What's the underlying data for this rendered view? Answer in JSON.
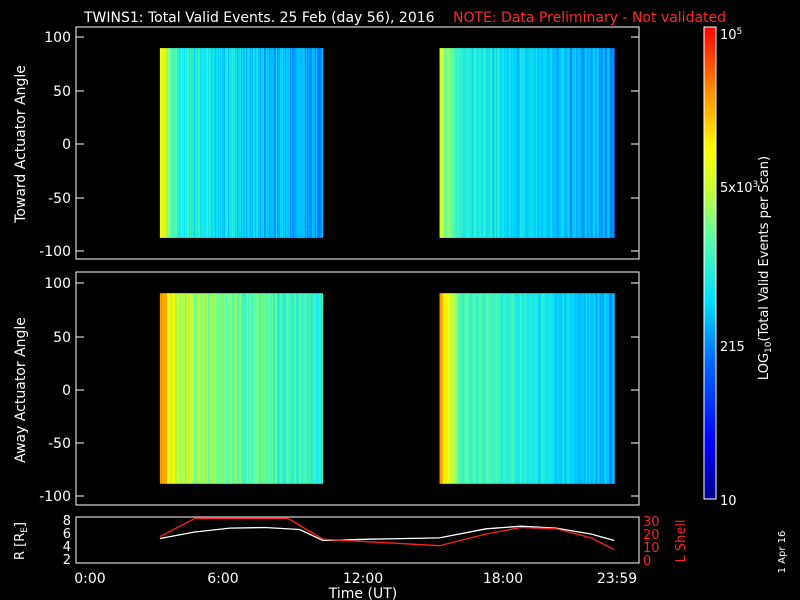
{
  "header": {
    "title": "TWINS1: Total Valid Events. 25 Feb (day  56), 2016",
    "note": "NOTE: Data Preliminary - Not validated",
    "note_color": "#ff2a2a"
  },
  "date_stamp": "1 Apr 16",
  "chart_data": [
    {
      "type": "heatmap",
      "ylabel": "Toward Actuator Angle",
      "yticks": [
        "100",
        "50",
        "0",
        "-50",
        "-100"
      ],
      "ylim": [
        -110,
        110
      ],
      "xlim_hours": [
        0,
        24
      ],
      "data_blocks": [
        {
          "t_start": "3:00",
          "t_end": "10:00",
          "angle_range": [
            -90,
            90
          ],
          "log_level_start": 0.72,
          "log_level_end": 0.33
        },
        {
          "t_start": "15:00",
          "t_end": "22:30",
          "angle_range": [
            -90,
            90
          ],
          "log_level_start": 0.66,
          "log_level_end": 0.35
        }
      ]
    },
    {
      "type": "heatmap",
      "ylabel": "Away Actuator Angle",
      "yticks": [
        "100",
        "50",
        "0",
        "-50",
        "-100"
      ],
      "ylim": [
        -110,
        110
      ],
      "xlim_hours": [
        0,
        24
      ],
      "data_blocks": [
        {
          "t_start": "3:00",
          "t_end": "10:00",
          "angle_range": [
            -90,
            90
          ],
          "log_level_start": 0.85,
          "log_level_end": 0.48
        },
        {
          "t_start": "15:00",
          "t_end": "22:30",
          "angle_range": [
            -90,
            90
          ],
          "log_level_start": 0.82,
          "log_level_end": 0.36
        }
      ]
    },
    {
      "type": "line",
      "ylabel": "R [R",
      "ylabel_sub": "E",
      "ylabel_close": "]",
      "y2label": "L Shell",
      "yticks_left": [
        "8",
        "6",
        "4",
        "2"
      ],
      "yticks_right": [
        "30",
        "20",
        "10",
        "0"
      ],
      "xlabel": "Time (UT)",
      "xticks": [
        "0:00",
        "6:00",
        "12:00",
        "18:00",
        "23:59"
      ],
      "series": [
        {
          "color": "#ffffff",
          "x": [
            3,
            4.5,
            6,
            7.5,
            9,
            10,
            12,
            15,
            17,
            18.5,
            20,
            21.5,
            22.5
          ],
          "y": [
            5.3,
            6.3,
            6.9,
            7.0,
            6.7,
            5.0,
            5.2,
            5.4,
            6.8,
            7.2,
            6.9,
            6.0,
            5.0
          ]
        },
        {
          "color": "#ff2020",
          "x": [
            3,
            4.5,
            8.5,
            10,
            12,
            15,
            17,
            18.5,
            20,
            21.5,
            22.5
          ],
          "y": [
            18,
            32,
            32,
            16,
            14,
            11,
            20,
            25,
            24,
            17,
            8
          ]
        }
      ]
    }
  ],
  "colorbar": {
    "label": "LOG",
    "label_sub": "10",
    "label_rest": "(Total Valid Events per Scan)",
    "ticks": [
      {
        "label": "10",
        "level": 0
      },
      {
        "label": "215",
        "level": 0.333
      },
      {
        "label": "5x10",
        "sup": "3",
        "level": 0.667
      },
      {
        "label": "10",
        "sup": "5",
        "level": 1
      }
    ]
  }
}
